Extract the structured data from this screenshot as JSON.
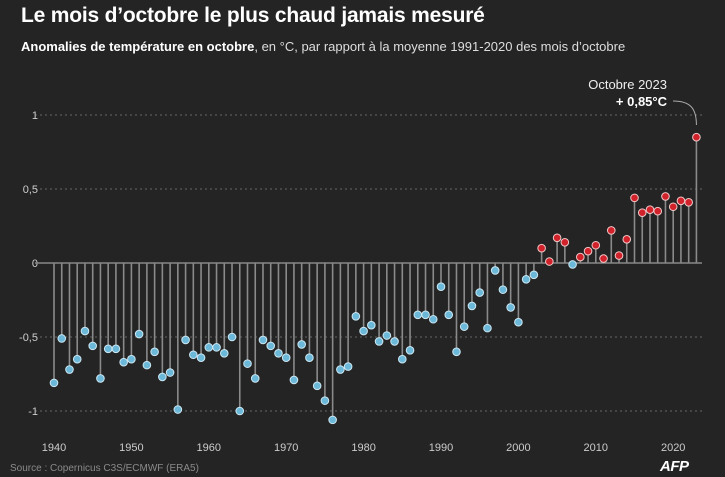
{
  "title": "Le mois d’octobre le plus chaud jamais mesuré",
  "subtitle_bold": "Anomalies de température en octobre",
  "subtitle_rest": ", en °C, par rapport à la moyenne 1991-2020 des mois d’octobre",
  "source": "Source : Copernicus C3S/ECMWF (ERA5)",
  "logo": "AFP",
  "colors": {
    "negative": "#6cb8d9",
    "positive": "#d1222b",
    "background": "#242424"
  },
  "chart_data": {
    "type": "lollipop",
    "title": "Le mois d’octobre le plus chaud jamais mesuré",
    "ylabel": "°C",
    "xlim": [
      1940,
      2023
    ],
    "ylim": [
      -1.1,
      1.1
    ],
    "x_ticks": [
      1940,
      1950,
      1960,
      1970,
      1980,
      1990,
      2000,
      2010,
      2020
    ],
    "y_ticks": [
      {
        "v": 1,
        "label": "1"
      },
      {
        "v": 0.5,
        "label": "0,5"
      },
      {
        "v": 0,
        "label": "0"
      },
      {
        "v": -0.5,
        "label": "-0,5"
      },
      {
        "v": -1,
        "label": "-1"
      }
    ],
    "grid": true,
    "annotation": {
      "year": 2023,
      "line1": "Octobre 2023",
      "line2": "+ 0,85°C"
    },
    "start_year": 1940,
    "values": [
      -0.81,
      -0.51,
      -0.72,
      -0.65,
      -0.46,
      -0.56,
      -0.78,
      -0.58,
      -0.58,
      -0.67,
      -0.65,
      -0.48,
      -0.69,
      -0.6,
      -0.77,
      -0.74,
      -0.99,
      -0.52,
      -0.62,
      -0.64,
      -0.57,
      -0.57,
      -0.61,
      -0.5,
      -1.0,
      -0.68,
      -0.78,
      -0.52,
      -0.56,
      -0.61,
      -0.64,
      -0.79,
      -0.55,
      -0.64,
      -0.83,
      -0.93,
      -1.06,
      -0.72,
      -0.7,
      -0.36,
      -0.46,
      -0.42,
      -0.53,
      -0.49,
      -0.53,
      -0.65,
      -0.59,
      -0.35,
      -0.35,
      -0.38,
      -0.16,
      -0.35,
      -0.6,
      -0.43,
      -0.29,
      -0.2,
      -0.44,
      -0.05,
      -0.18,
      -0.3,
      -0.4,
      -0.11,
      -0.08,
      0.1,
      0.01,
      0.17,
      0.14,
      -0.01,
      0.04,
      0.08,
      0.12,
      0.03,
      0.22,
      0.05,
      0.16,
      0.44,
      0.34,
      0.36,
      0.35,
      0.45,
      0.38,
      0.42,
      0.41,
      0.85
    ]
  }
}
